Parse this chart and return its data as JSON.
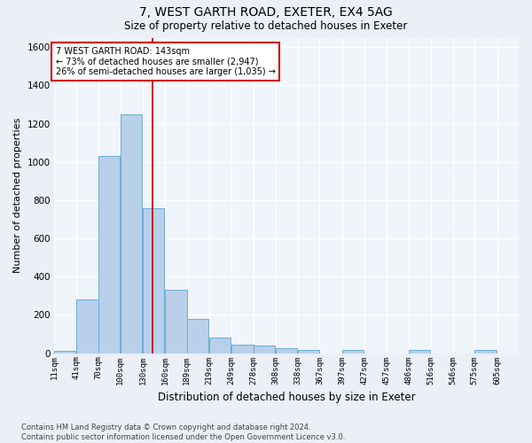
{
  "title": "7, WEST GARTH ROAD, EXETER, EX4 5AG",
  "subtitle": "Size of property relative to detached houses in Exeter",
  "xlabel": "Distribution of detached houses by size in Exeter",
  "ylabel": "Number of detached properties",
  "bin_labels": [
    "11sqm",
    "41sqm",
    "70sqm",
    "100sqm",
    "130sqm",
    "160sqm",
    "189sqm",
    "219sqm",
    "249sqm",
    "278sqm",
    "308sqm",
    "338sqm",
    "367sqm",
    "397sqm",
    "427sqm",
    "457sqm",
    "486sqm",
    "516sqm",
    "546sqm",
    "575sqm",
    "605sqm"
  ],
  "bar_heights": [
    10,
    280,
    1030,
    1250,
    760,
    330,
    180,
    80,
    45,
    38,
    25,
    15,
    0,
    15,
    0,
    0,
    15,
    0,
    0,
    15,
    0
  ],
  "bar_color": "#b8d0ea",
  "bar_edge_color": "#6aaed6",
  "vline_x": 143,
  "vline_color": "#cc0000",
  "annotation_text": "7 WEST GARTH ROAD: 143sqm\n← 73% of detached houses are smaller (2,947)\n26% of semi-detached houses are larger (1,035) →",
  "annotation_box_color": "#cc0000",
  "annotation_text_color": "#000000",
  "ylim": [
    0,
    1650
  ],
  "yticks": [
    0,
    200,
    400,
    600,
    800,
    1000,
    1200,
    1400,
    1600
  ],
  "footer_text": "Contains HM Land Registry data © Crown copyright and database right 2024.\nContains public sector information licensed under the Open Government Licence v3.0.",
  "bg_color": "#eaeff8",
  "plot_bg_color": "#f0f4fb",
  "grid_color": "#ffffff",
  "bin_width": 29
}
